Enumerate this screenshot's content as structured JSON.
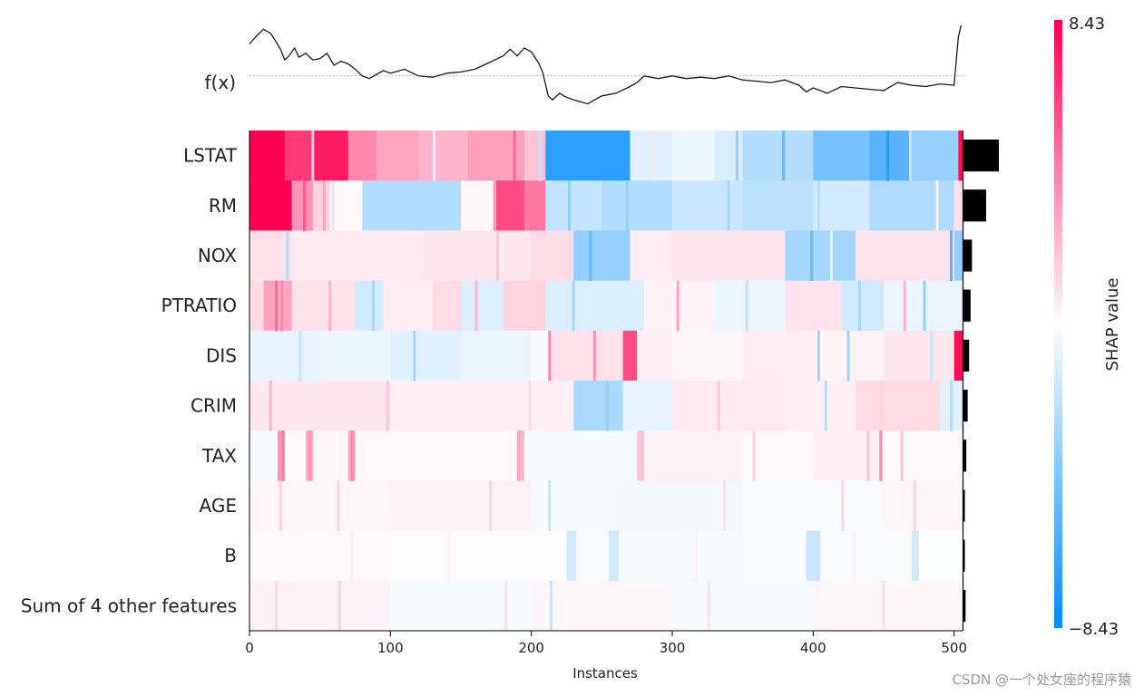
{
  "chart_data": {
    "type": "heatmap",
    "title": "",
    "xlabel": "Instances",
    "ylabel": "",
    "xlim": [
      0,
      506
    ],
    "x_ticks": [
      0,
      100,
      200,
      300,
      400,
      500
    ],
    "fx_label": "f(x)",
    "features": [
      "LSTAT",
      "RM",
      "NOX",
      "PTRATIO",
      "DIS",
      "CRIM",
      "TAX",
      "AGE",
      "B",
      "Sum of 4 other features"
    ],
    "feature_importance": [
      2.5,
      1.6,
      0.6,
      0.5,
      0.4,
      0.3,
      0.2,
      0.1,
      0.1,
      0.15
    ],
    "colorbar": {
      "label": "SHAP value",
      "min": -8.43,
      "max": 8.43,
      "min_label": "−8.43",
      "max_label": "8.43"
    },
    "colors": {
      "positive": "#ff0052",
      "negative": "#008bfb",
      "neutral": "#ffffff"
    },
    "segments": {
      "LSTAT": [
        [
          0,
          25,
          8.4
        ],
        [
          25,
          45,
          6.5
        ],
        [
          45,
          70,
          7.5
        ],
        [
          70,
          90,
          4.0
        ],
        [
          90,
          120,
          3.0
        ],
        [
          120,
          155,
          2.5
        ],
        [
          155,
          195,
          3.2
        ],
        [
          195,
          210,
          2.0
        ],
        [
          210,
          270,
          -7.0
        ],
        [
          270,
          300,
          -1.0
        ],
        [
          300,
          330,
          -0.6
        ],
        [
          330,
          350,
          -1.2
        ],
        [
          350,
          400,
          -2.5
        ],
        [
          400,
          440,
          -4.5
        ],
        [
          440,
          470,
          -5.5
        ],
        [
          470,
          503,
          -3.5
        ],
        [
          503,
          506,
          8.0
        ]
      ],
      "RM": [
        [
          0,
          30,
          8.4
        ],
        [
          30,
          45,
          3.5
        ],
        [
          45,
          60,
          1.5
        ],
        [
          60,
          80,
          0.2
        ],
        [
          80,
          150,
          -2.5
        ],
        [
          150,
          175,
          0.3
        ],
        [
          175,
          195,
          6.0
        ],
        [
          195,
          210,
          4.5
        ],
        [
          210,
          250,
          -2.0
        ],
        [
          250,
          300,
          -2.5
        ],
        [
          300,
          350,
          -1.8
        ],
        [
          350,
          400,
          -2.2
        ],
        [
          400,
          440,
          -1.5
        ],
        [
          440,
          500,
          -2.6
        ],
        [
          500,
          506,
          1.0
        ]
      ],
      "NOX": [
        [
          0,
          30,
          1.0
        ],
        [
          30,
          120,
          0.7
        ],
        [
          120,
          200,
          0.8
        ],
        [
          200,
          230,
          1.2
        ],
        [
          230,
          270,
          -3.5
        ],
        [
          270,
          300,
          0.6
        ],
        [
          300,
          380,
          0.8
        ],
        [
          380,
          430,
          -3.0
        ],
        [
          430,
          500,
          0.9
        ],
        [
          500,
          506,
          -3.5
        ]
      ],
      "PTRATIO": [
        [
          0,
          10,
          1.2
        ],
        [
          10,
          30,
          3.0
        ],
        [
          30,
          75,
          1.0
        ],
        [
          75,
          95,
          -1.5
        ],
        [
          95,
          130,
          0.6
        ],
        [
          130,
          150,
          1.2
        ],
        [
          150,
          180,
          -1.2
        ],
        [
          180,
          210,
          1.5
        ],
        [
          210,
          280,
          -1.2
        ],
        [
          280,
          330,
          0.4
        ],
        [
          330,
          380,
          -0.6
        ],
        [
          380,
          420,
          0.9
        ],
        [
          420,
          450,
          -1.5
        ],
        [
          450,
          506,
          -0.7
        ]
      ],
      "DIS": [
        [
          0,
          50,
          -0.8
        ],
        [
          50,
          100,
          -0.6
        ],
        [
          100,
          150,
          -1.0
        ],
        [
          150,
          200,
          -0.7
        ],
        [
          200,
          212,
          -0.3
        ],
        [
          212,
          265,
          1.0
        ],
        [
          265,
          275,
          6.0
        ],
        [
          275,
          300,
          0.5
        ],
        [
          300,
          350,
          0.3
        ],
        [
          350,
          400,
          0.6
        ],
        [
          400,
          450,
          0.4
        ],
        [
          450,
          500,
          0.8
        ],
        [
          500,
          506,
          8.0
        ]
      ],
      "CRIM": [
        [
          0,
          100,
          0.8
        ],
        [
          100,
          230,
          0.5
        ],
        [
          230,
          265,
          -2.8
        ],
        [
          265,
          300,
          -0.8
        ],
        [
          300,
          380,
          0.7
        ],
        [
          380,
          430,
          0.5
        ],
        [
          430,
          490,
          1.2
        ],
        [
          490,
          506,
          -1.0
        ]
      ],
      "TAX": [
        [
          0,
          20,
          -0.3
        ],
        [
          20,
          25,
          3.5
        ],
        [
          25,
          40,
          0.2
        ],
        [
          40,
          45,
          3.0
        ],
        [
          45,
          70,
          0.3
        ],
        [
          70,
          75,
          3.0
        ],
        [
          75,
          190,
          0.2
        ],
        [
          190,
          195,
          2.5
        ],
        [
          195,
          275,
          -0.3
        ],
        [
          275,
          280,
          2.0
        ],
        [
          280,
          350,
          0.4
        ],
        [
          350,
          400,
          0.2
        ],
        [
          400,
          450,
          0.5
        ],
        [
          450,
          506,
          0.2
        ]
      ],
      "AGE": [
        [
          0,
          100,
          0.3
        ],
        [
          100,
          200,
          0.4
        ],
        [
          200,
          260,
          -0.3
        ],
        [
          260,
          350,
          -0.4
        ],
        [
          350,
          450,
          -0.2
        ],
        [
          450,
          506,
          0.3
        ]
      ],
      "B": [
        [
          0,
          100,
          0.2
        ],
        [
          100,
          225,
          0.15
        ],
        [
          225,
          232,
          -1.5
        ],
        [
          232,
          255,
          -0.2
        ],
        [
          255,
          262,
          -1.5
        ],
        [
          262,
          350,
          -0.3
        ],
        [
          350,
          395,
          -0.2
        ],
        [
          395,
          405,
          -1.8
        ],
        [
          405,
          470,
          -0.2
        ],
        [
          470,
          475,
          -1.5
        ],
        [
          475,
          506,
          -0.1
        ]
      ],
      "Sum of 4 other features": [
        [
          0,
          100,
          0.4
        ],
        [
          100,
          200,
          -0.3
        ],
        [
          200,
          300,
          0.3
        ],
        [
          300,
          400,
          -0.3
        ],
        [
          400,
          506,
          0.3
        ]
      ]
    },
    "stripes": [
      [
        "LSTAT",
        44,
        1.5
      ],
      [
        "LSTAT",
        130,
        -0.8
      ],
      [
        "LSTAT",
        187,
        5.0
      ],
      [
        "LSTAT",
        205,
        -2.0
      ],
      [
        "LSTAT",
        286,
        0.8
      ],
      [
        "LSTAT",
        345,
        -3.5
      ],
      [
        "LSTAT",
        378,
        -5.0
      ],
      [
        "LSTAT",
        452,
        -7.0
      ],
      [
        "LSTAT",
        468,
        -2.0
      ],
      [
        "RM",
        38,
        5.5
      ],
      [
        "RM",
        52,
        3.0
      ],
      [
        "RM",
        57,
        -0.5
      ],
      [
        "RM",
        173,
        3.5
      ],
      [
        "RM",
        226,
        -3.5
      ],
      [
        "RM",
        267,
        -3.5
      ],
      [
        "RM",
        339,
        -3.0
      ],
      [
        "RM",
        403,
        -2.5
      ],
      [
        "RM",
        487,
        0.5
      ],
      [
        "NOX",
        26,
        -2.5
      ],
      [
        "NOX",
        175,
        1.8
      ],
      [
        "NOX",
        241,
        -5.0
      ],
      [
        "NOX",
        398,
        -5.0
      ],
      [
        "NOX",
        412,
        -1.0
      ],
      [
        "NOX",
        497,
        -5.5
      ],
      [
        "PTRATIO",
        18,
        5.0
      ],
      [
        "PTRATIO",
        22,
        4.0
      ],
      [
        "PTRATIO",
        56,
        2.5
      ],
      [
        "PTRATIO",
        87,
        -3.0
      ],
      [
        "PTRATIO",
        160,
        2.5
      ],
      [
        "PTRATIO",
        229,
        -3.0
      ],
      [
        "PTRATIO",
        303,
        3.0
      ],
      [
        "PTRATIO",
        352,
        -2.0
      ],
      [
        "PTRATIO",
        432,
        -3.0
      ],
      [
        "PTRATIO",
        464,
        2.5
      ],
      [
        "PTRATIO",
        478,
        -3.5
      ],
      [
        "DIS",
        35,
        -2.0
      ],
      [
        "DIS",
        116,
        -3.0
      ],
      [
        "DIS",
        212,
        4.0
      ],
      [
        "DIS",
        244,
        3.5
      ],
      [
        "DIS",
        403,
        -3.0
      ],
      [
        "DIS",
        424,
        -3.0
      ],
      [
        "DIS",
        483,
        -2.0
      ],
      [
        "CRIM",
        14,
        2.5
      ],
      [
        "CRIM",
        97,
        2.0
      ],
      [
        "CRIM",
        198,
        1.2
      ],
      [
        "CRIM",
        253,
        -3.5
      ],
      [
        "CRIM",
        332,
        1.8
      ],
      [
        "CRIM",
        408,
        -2.5
      ],
      [
        "CRIM",
        448,
        1.5
      ],
      [
        "CRIM",
        497,
        -2.5
      ],
      [
        "TAX",
        23,
        4.5
      ],
      [
        "TAX",
        42,
        3.5
      ],
      [
        "TAX",
        72,
        4.0
      ],
      [
        "TAX",
        190,
        3.0
      ],
      [
        "TAX",
        357,
        1.5
      ],
      [
        "TAX",
        438,
        2.0
      ],
      [
        "TAX",
        447,
        4.0
      ],
      [
        "TAX",
        462,
        2.0
      ],
      [
        "AGE",
        21,
        1.5
      ],
      [
        "AGE",
        62,
        1.5
      ],
      [
        "AGE",
        170,
        1.5
      ],
      [
        "AGE",
        212,
        -2.0
      ],
      [
        "AGE",
        336,
        1.0
      ],
      [
        "AGE",
        420,
        1.2
      ],
      [
        "AGE",
        471,
        1.5
      ],
      [
        "B",
        72,
        0.5
      ],
      [
        "B",
        141,
        0.4
      ],
      [
        "B",
        316,
        0.5
      ],
      [
        "B",
        428,
        0.5
      ],
      [
        "Sum of 4 other features",
        18,
        1.2
      ],
      [
        "Sum of 4 other features",
        63,
        1.5
      ],
      [
        "Sum of 4 other features",
        181,
        1.0
      ],
      [
        "Sum of 4 other features",
        213,
        -2.0
      ],
      [
        "Sum of 4 other features",
        325,
        1.0
      ],
      [
        "Sum of 4 other features",
        449,
        1.0
      ]
    ],
    "fx_curve": {
      "x": [
        0,
        5,
        10,
        15,
        18,
        22,
        25,
        28,
        32,
        35,
        40,
        45,
        50,
        55,
        60,
        65,
        70,
        75,
        80,
        85,
        90,
        95,
        100,
        110,
        120,
        130,
        140,
        150,
        160,
        170,
        180,
        185,
        190,
        195,
        200,
        205,
        208,
        212,
        215,
        220,
        225,
        230,
        240,
        250,
        260,
        270,
        275,
        280,
        290,
        300,
        310,
        320,
        330,
        340,
        350,
        360,
        370,
        380,
        390,
        395,
        400,
        405,
        410,
        420,
        430,
        440,
        450,
        460,
        470,
        480,
        490,
        500,
        503,
        505
      ],
      "y": [
        0.8,
        1.4,
        1.9,
        1.6,
        1.1,
        0.4,
        -0.4,
        -0.1,
        0.5,
        -0.2,
        0.1,
        -0.4,
        -0.3,
        0.1,
        -0.8,
        -0.5,
        -0.7,
        -1.1,
        -1.6,
        -1.8,
        -1.5,
        -1.2,
        -1.4,
        -1.1,
        -1.6,
        -1.7,
        -1.4,
        -1.3,
        -1.1,
        -0.6,
        -0.1,
        0.4,
        -0.1,
        0.5,
        0.2,
        -0.6,
        -1.3,
        -3.1,
        -3.4,
        -2.9,
        -3.2,
        -3.4,
        -3.7,
        -3.1,
        -2.9,
        -2.4,
        -2.1,
        -1.6,
        -1.8,
        -1.6,
        -1.8,
        -1.7,
        -1.8,
        -1.6,
        -1.9,
        -2.0,
        -2.1,
        -1.9,
        -2.3,
        -2.8,
        -2.5,
        -2.7,
        -2.9,
        -2.4,
        -2.5,
        -2.6,
        -2.7,
        -2.1,
        -2.3,
        -2.4,
        -2.2,
        -2.3,
        1.3,
        2.2
      ],
      "baseline": -1.6,
      "y_range": [
        -4.2,
        2.6
      ]
    }
  },
  "watermark": "CSDN @一个处女座的程序猿"
}
